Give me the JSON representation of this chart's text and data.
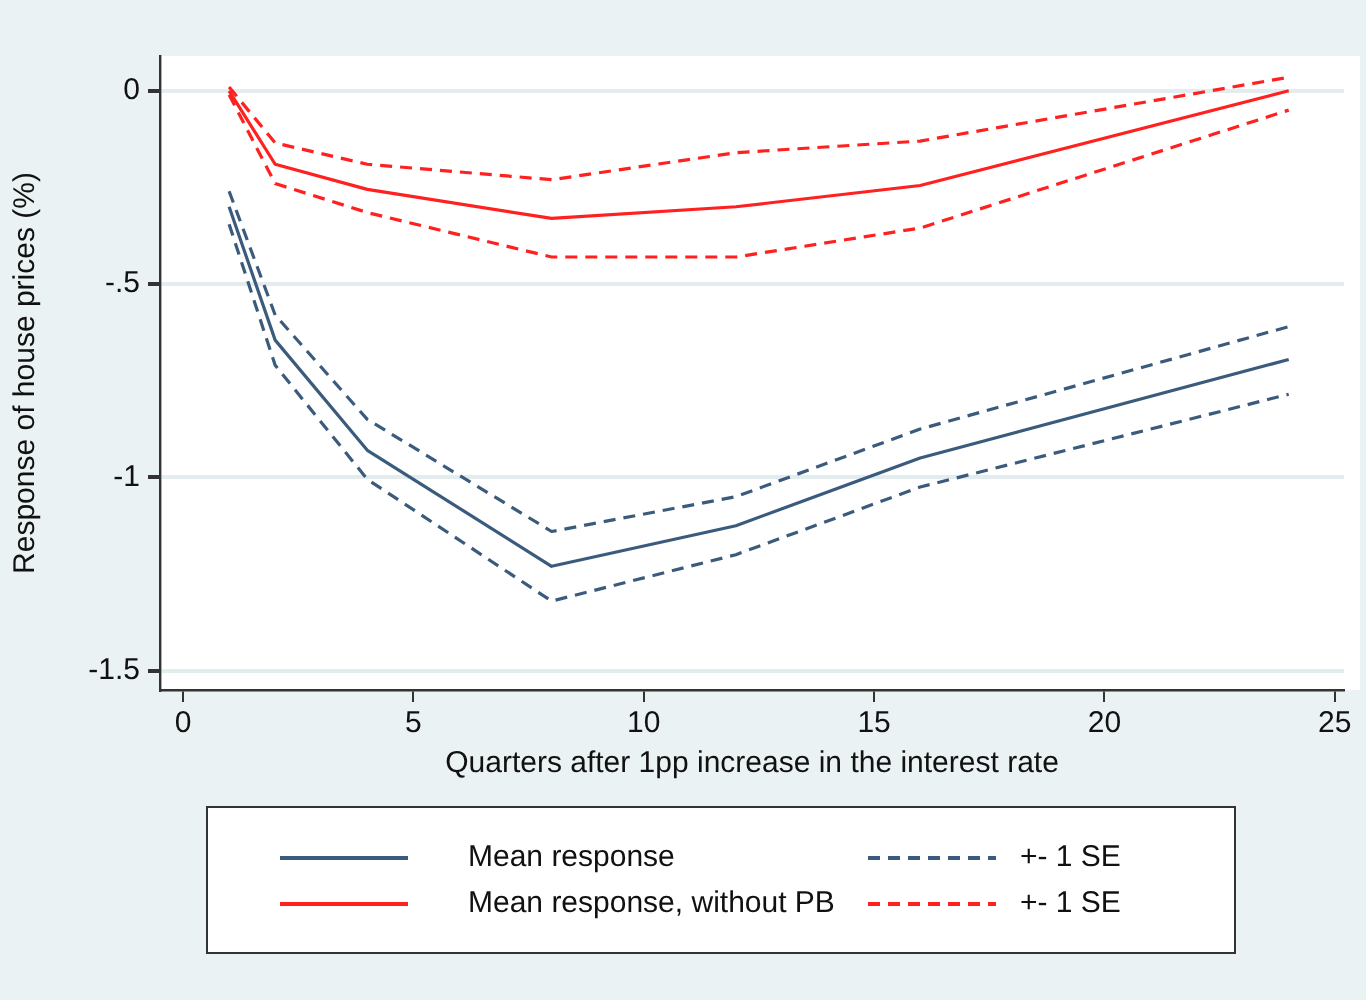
{
  "chart_data": {
    "type": "line",
    "xlabel": "Quarters after 1pp increase in the interest rate",
    "ylabel": "Response of house prices (%)",
    "xlim": [
      -0.5,
      25.2
    ],
    "xticks": [
      0,
      5,
      10,
      15,
      20,
      25
    ],
    "ylim": [
      -1.55,
      0.09
    ],
    "yticks": [
      0,
      {
        "value": -0.5,
        "label": "-.5"
      },
      {
        "value": -1,
        "label": "-1"
      },
      {
        "value": -1.5,
        "label": "-1.5"
      }
    ],
    "grid": "y",
    "legend": "bottom",
    "marker": "none",
    "x": [
      1,
      2,
      4,
      8,
      12,
      16,
      24
    ],
    "series": [
      {
        "name": "Mean response",
        "color": "#3b5b7d",
        "line_style": "solid",
        "values": [
          -0.3,
          -0.645,
          -0.93,
          -1.23,
          -1.125,
          -0.95,
          -0.695
        ]
      },
      {
        "name": "+- 1 SE",
        "color": "#3b5b7d",
        "line_style": "dashed",
        "values": [
          -0.26,
          -0.58,
          -0.85,
          -1.14,
          -1.05,
          -0.875,
          -0.61
        ]
      },
      {
        "color": "#3b5b7d",
        "line_style": "dashed",
        "values": [
          -0.345,
          -0.71,
          -1.005,
          -1.32,
          -1.2,
          -1.025,
          -0.785
        ]
      },
      {
        "name": "Mean response, without PB",
        "color": "#ff2020",
        "line_style": "solid",
        "values": [
          0,
          -0.19,
          -0.255,
          -0.33,
          -0.3,
          -0.245,
          0
        ]
      },
      {
        "name": "+- 1 SE",
        "color": "#ff2020",
        "line_style": "dashed",
        "values": [
          0.01,
          -0.135,
          -0.19,
          -0.23,
          -0.16,
          -0.13,
          0.035
        ]
      },
      {
        "color": "#ff2020",
        "line_style": "dashed",
        "values": [
          -0.01,
          -0.24,
          -0.315,
          -0.43,
          -0.43,
          -0.355,
          -0.05
        ]
      }
    ]
  }
}
